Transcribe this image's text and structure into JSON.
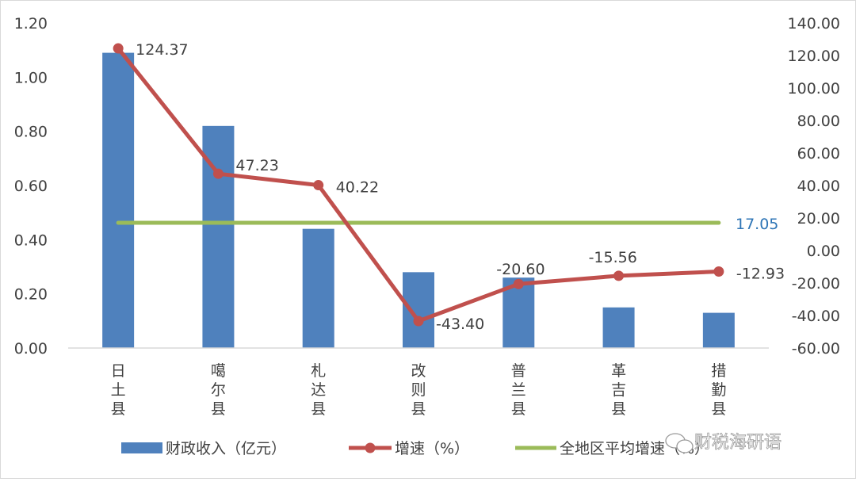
{
  "chart_data": {
    "type": "bar+line",
    "categories": [
      "日土县",
      "噶尔县",
      "札达县",
      "改则县",
      "普兰县",
      "革吉县",
      "措勤县"
    ],
    "category_lines": [
      [
        "日",
        "土",
        "县"
      ],
      [
        "噶",
        "尔",
        "县"
      ],
      [
        "札",
        "达",
        "县"
      ],
      [
        "改",
        "则",
        "县"
      ],
      [
        "普",
        "兰",
        "县"
      ],
      [
        "革",
        "吉",
        "县"
      ],
      [
        "措",
        "勤",
        "县"
      ]
    ],
    "series": [
      {
        "name": "财政收入（亿元）",
        "type": "bar",
        "axis": "left",
        "values": [
          1.09,
          0.82,
          0.44,
          0.28,
          0.26,
          0.15,
          0.13
        ],
        "color": "#4f81bd"
      },
      {
        "name": "增速（%）",
        "type": "line",
        "axis": "right",
        "values": [
          124.37,
          47.23,
          40.22,
          -43.4,
          -20.6,
          -15.56,
          -12.93
        ],
        "labels": [
          "124.37",
          "47.23",
          "40.22",
          "-43.40",
          "-20.60",
          "-15.56",
          "-12.93"
        ],
        "color": "#c0504d"
      },
      {
        "name": "全地区平均增速（%）",
        "type": "line",
        "axis": "right",
        "value": 17.05,
        "label": "17.05",
        "color": "#9bbb59",
        "label_color": "#2e75b6"
      }
    ],
    "left_axis": {
      "ylim": [
        0,
        1.2
      ],
      "ticks": [
        "0.00",
        "0.20",
        "0.40",
        "0.60",
        "0.80",
        "1.00",
        "1.20"
      ],
      "tick_values": [
        0,
        0.2,
        0.4,
        0.6,
        0.8,
        1.0,
        1.2
      ]
    },
    "right_axis": {
      "ylim": [
        -60,
        140
      ],
      "ticks": [
        "-60.00",
        "-40.00",
        "-20.00",
        "0.00",
        "20.00",
        "40.00",
        "60.00",
        "80.00",
        "100.00",
        "120.00",
        "140.00"
      ],
      "tick_values": [
        -60,
        -40,
        -20,
        0,
        20,
        40,
        60,
        80,
        100,
        120,
        140
      ]
    },
    "legend": {
      "position": "bottom"
    },
    "grid": false
  },
  "watermark": {
    "text": "财税海研语",
    "icon": "wechat-icon"
  }
}
